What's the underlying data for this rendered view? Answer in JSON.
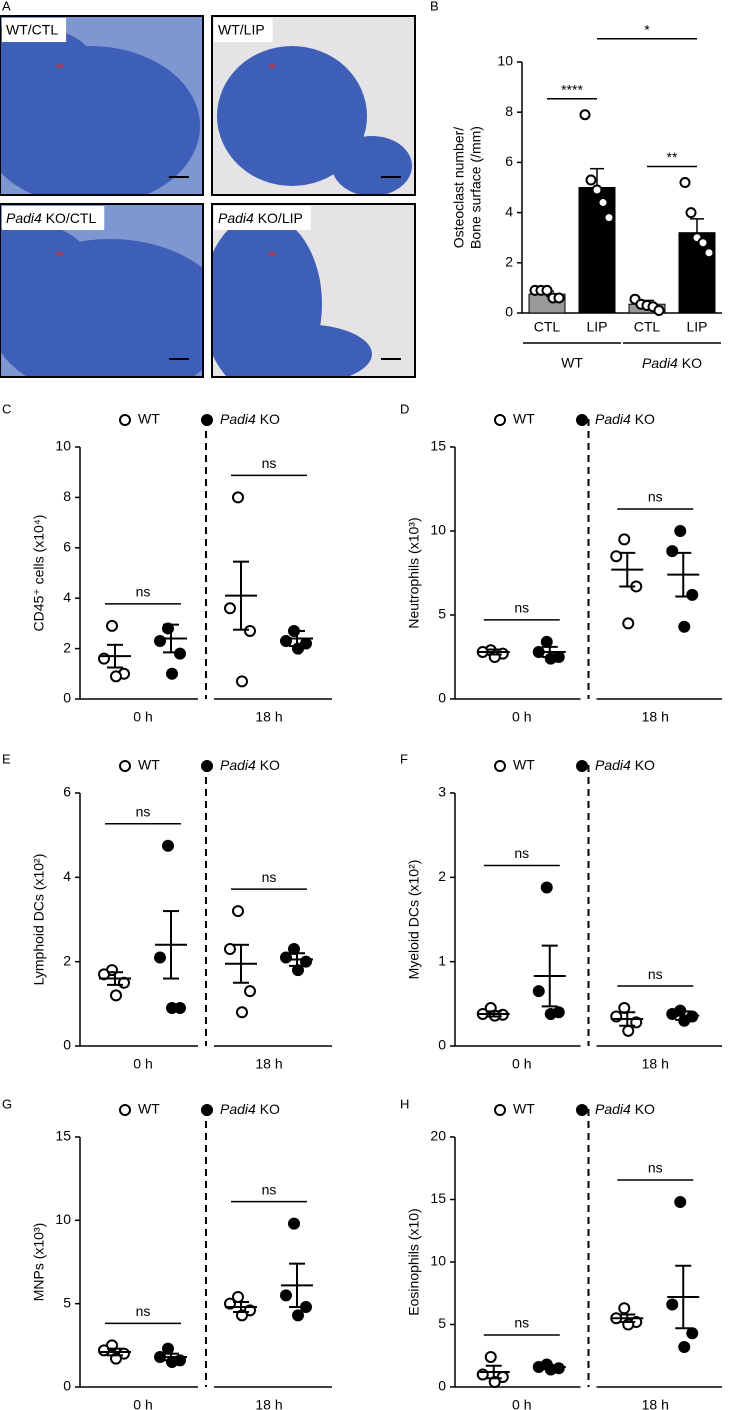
{
  "panel_a": {
    "letter": "A",
    "images": [
      {
        "label": "WT/CTL"
      },
      {
        "label": "WT/LIP"
      },
      {
        "label": "Padi4 KO/CTL",
        "italic_first_word": true
      },
      {
        "label": "Padi4 KO/LIP",
        "italic_first_word": true
      }
    ]
  },
  "chart_data": [
    {
      "type": "bar",
      "panel": "B",
      "ylabel": [
        "Osteoclast number/",
        "Bone surface (/mm)"
      ],
      "ylim": [
        0,
        10
      ],
      "yticks": [
        0,
        2,
        4,
        6,
        8,
        10
      ],
      "categories": [
        "CTL",
        "LIP",
        "CTL",
        "LIP"
      ],
      "groups": [
        {
          "name": "WT",
          "categories": [
            0,
            1
          ]
        },
        {
          "name": "Padi4 KO",
          "categories": [
            2,
            3
          ],
          "italic_first_word": true
        }
      ],
      "colors": [
        "#999999",
        "#000000",
        "#999999",
        "#000000"
      ],
      "values": [
        0.75,
        5.0,
        0.35,
        3.2
      ],
      "errors": [
        0.12,
        0.75,
        0.15,
        0.55
      ],
      "points": [
        [
          0.9,
          0.9,
          0.9,
          0.6,
          0.6
        ],
        [
          7.9,
          5.3,
          4.9,
          4.4,
          3.8
        ],
        [
          0.55,
          0.35,
          0.3,
          0.25,
          0.1
        ],
        [
          5.2,
          4.0,
          3.0,
          2.8,
          2.4
        ]
      ],
      "annotations": [
        {
          "text": "****",
          "from": 0,
          "to": 1
        },
        {
          "text": "**",
          "from": 2,
          "to": 3
        },
        {
          "text": "*",
          "from": 1,
          "to": 3
        }
      ]
    },
    {
      "type": "dot",
      "panel": "C",
      "ylabel": "CD45⁺ cells (x10⁴)",
      "ylim": [
        0,
        10
      ],
      "yticks": [
        0,
        2,
        4,
        6,
        8,
        10
      ],
      "categories": [
        "0 h",
        "18 h"
      ],
      "series": [
        {
          "name": "WT",
          "marker": "open",
          "values": [
            [
              2.9,
              1.6,
              1.0,
              0.9
            ],
            [
              8.0,
              3.6,
              2.7,
              0.7
            ]
          ],
          "mean": [
            1.7,
            4.1
          ],
          "sem": [
            0.45,
            1.35
          ]
        },
        {
          "name": "Padi4 KO",
          "italic_first_word": true,
          "marker": "filled",
          "values": [
            [
              2.8,
              2.3,
              1.8,
              1.0
            ],
            [
              2.7,
              2.3,
              2.2,
              2.0
            ]
          ],
          "mean": [
            2.4,
            2.4
          ],
          "sem": [
            0.55,
            0.3
          ]
        }
      ],
      "annotations": [
        {
          "text": "ns",
          "category": 0
        },
        {
          "text": "ns",
          "category": 1
        }
      ],
      "divider": "dashed"
    },
    {
      "type": "dot",
      "panel": "D",
      "ylabel": "Neutrophils (x10³)",
      "ylim": [
        0,
        15
      ],
      "yticks": [
        0,
        5,
        10,
        15
      ],
      "categories": [
        "0 h",
        "18 h"
      ],
      "series": [
        {
          "name": "WT",
          "marker": "open",
          "values": [
            [
              2.9,
              2.8,
              2.7,
              2.5
            ],
            [
              9.5,
              8.5,
              6.7,
              4.5
            ]
          ],
          "mean": [
            2.8,
            7.7
          ],
          "sem": [
            0.15,
            1.0
          ]
        },
        {
          "name": "Padi4 KO",
          "italic_first_word": true,
          "marker": "filled",
          "values": [
            [
              3.4,
              2.8,
              2.5,
              2.4
            ],
            [
              10.0,
              8.8,
              6.2,
              4.3
            ]
          ],
          "mean": [
            2.8,
            7.4
          ],
          "sem": [
            0.3,
            1.3
          ]
        }
      ],
      "annotations": [
        {
          "text": "ns",
          "category": 0
        },
        {
          "text": "ns",
          "category": 1
        }
      ],
      "divider": "dashed"
    },
    {
      "type": "dot",
      "panel": "E",
      "ylabel": "Lymphoid DCs (x10²)",
      "ylim": [
        0,
        6
      ],
      "yticks": [
        0,
        2,
        4,
        6
      ],
      "categories": [
        "0 h",
        "18 h"
      ],
      "series": [
        {
          "name": "WT",
          "marker": "open",
          "values": [
            [
              1.8,
              1.7,
              1.5,
              1.2
            ],
            [
              3.2,
              2.3,
              1.3,
              0.8
            ]
          ],
          "mean": [
            1.6,
            1.95
          ],
          "sem": [
            0.15,
            0.45
          ]
        },
        {
          "name": "Padi4 KO",
          "italic_first_word": true,
          "marker": "filled",
          "values": [
            [
              4.75,
              2.1,
              0.9,
              0.9
            ],
            [
              2.3,
              2.1,
              2.0,
              1.8
            ]
          ],
          "mean": [
            2.4,
            2.05
          ],
          "sem": [
            0.8,
            0.15
          ]
        }
      ],
      "annotations": [
        {
          "text": "ns",
          "category": 0
        },
        {
          "text": "ns",
          "category": 1
        }
      ],
      "divider": "dashed"
    },
    {
      "type": "dot",
      "panel": "F",
      "ylabel": "Myeloid DCs (x10²)",
      "ylim": [
        0,
        3
      ],
      "yticks": [
        0,
        1,
        2,
        3
      ],
      "categories": [
        "0 h",
        "18 h"
      ],
      "series": [
        {
          "name": "WT",
          "marker": "open",
          "values": [
            [
              0.45,
              0.38,
              0.37,
              0.36
            ],
            [
              0.45,
              0.35,
              0.28,
              0.18
            ]
          ],
          "mean": [
            0.38,
            0.32
          ],
          "sem": [
            0.03,
            0.08
          ]
        },
        {
          "name": "Padi4 KO",
          "italic_first_word": true,
          "marker": "filled",
          "values": [
            [
              1.88,
              0.65,
              0.4,
              0.38
            ],
            [
              0.42,
              0.38,
              0.35,
              0.3
            ]
          ],
          "mean": [
            0.83,
            0.36
          ],
          "sem": [
            0.36,
            0.05
          ]
        }
      ],
      "annotations": [
        {
          "text": "ns",
          "category": 0
        },
        {
          "text": "ns",
          "category": 1
        }
      ],
      "divider": "dashed"
    },
    {
      "type": "dot",
      "panel": "G",
      "ylabel": "MNPs  (x10³)",
      "ylim": [
        0,
        15
      ],
      "yticks": [
        0,
        5,
        10,
        15
      ],
      "categories": [
        "0 h",
        "18 h"
      ],
      "series": [
        {
          "name": "WT",
          "marker": "open",
          "values": [
            [
              2.5,
              2.2,
              2.0,
              1.7
            ],
            [
              5.4,
              5.0,
              4.6,
              4.3
            ]
          ],
          "mean": [
            2.1,
            4.8
          ],
          "sem": [
            0.2,
            0.3
          ]
        },
        {
          "name": "Padi4 KO",
          "italic_first_word": true,
          "marker": "filled",
          "values": [
            [
              2.3,
              1.8,
              1.6,
              1.5
            ],
            [
              9.8,
              5.5,
              4.8,
              4.3
            ]
          ],
          "mean": [
            1.8,
            6.1
          ],
          "sem": [
            0.2,
            1.3
          ]
        }
      ],
      "annotations": [
        {
          "text": "ns",
          "category": 0
        },
        {
          "text": "ns",
          "category": 1
        }
      ],
      "divider": "dashed"
    },
    {
      "type": "dot",
      "panel": "H",
      "ylabel": "Eosinophils (x10)",
      "ylim": [
        0,
        20
      ],
      "yticks": [
        0,
        5,
        10,
        15,
        20
      ],
      "categories": [
        "0 h",
        "18 h"
      ],
      "series": [
        {
          "name": "WT",
          "marker": "open",
          "values": [
            [
              2.4,
              1.0,
              0.8,
              0.4
            ],
            [
              6.3,
              5.5,
              5.2,
              5.0
            ]
          ],
          "mean": [
            1.2,
            5.5
          ],
          "sem": [
            0.5,
            0.3
          ]
        },
        {
          "name": "Padi4 KO",
          "italic_first_word": true,
          "marker": "filled",
          "values": [
            [
              1.8,
              1.6,
              1.5,
              1.4
            ],
            [
              14.8,
              6.6,
              4.3,
              3.2
            ]
          ],
          "mean": [
            1.6,
            7.2
          ],
          "sem": [
            0.15,
            2.5
          ]
        }
      ],
      "annotations": [
        {
          "text": "ns",
          "category": 0
        },
        {
          "text": "ns",
          "category": 1
        }
      ],
      "divider": "dashed"
    }
  ]
}
